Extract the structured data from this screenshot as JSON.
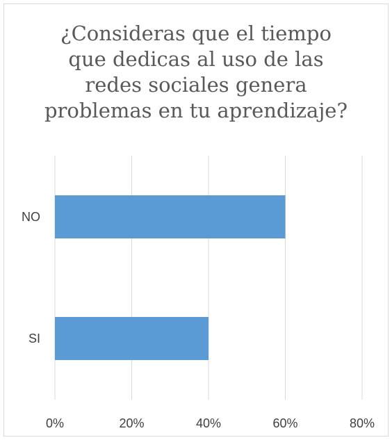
{
  "chart_data": {
    "type": "bar",
    "orientation": "horizontal",
    "title": "¿Consideras que el tiempo que dedicas al uso de las redes sociales genera problemas en tu aprendizaje?",
    "title_lines": [
      "¿Consideras que el tiempo",
      "que dedicas al uso de las",
      "redes sociales genera",
      "problemas en tu aprendizaje?"
    ],
    "categories": [
      "NO",
      "SI"
    ],
    "values": [
      0.6,
      0.4
    ],
    "xlim": [
      0,
      0.8
    ],
    "xticks": [
      0,
      0.2,
      0.4,
      0.6,
      0.8
    ],
    "xtick_labels": [
      "0%",
      "20%",
      "40%",
      "60%",
      "80%"
    ],
    "xlabel": "",
    "ylabel": "",
    "grid": "vertical",
    "legend": "none",
    "bar_color": "#5b9bd5",
    "grid_color": "#d9d9d9",
    "label_color": "#404040",
    "title_color": "#595959"
  }
}
